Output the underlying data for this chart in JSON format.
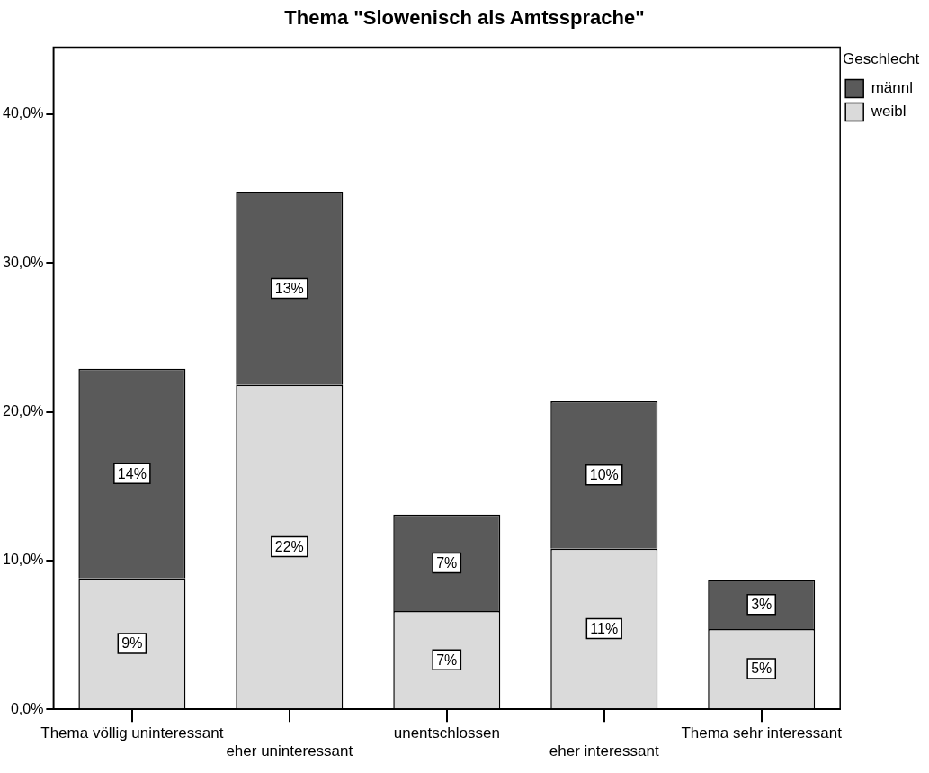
{
  "chart_data": {
    "type": "bar",
    "title": "Thema \"Slowenisch als Amtssprache\"",
    "categories": [
      "Thema völlig uninteressant",
      "eher uninteressant",
      "unentschlossen",
      "eher interessant",
      "Thema sehr interessant"
    ],
    "stacked": true,
    "series": [
      {
        "name": "weibl",
        "color": "#dadada",
        "values": [
          8.8,
          21.8,
          6.6,
          10.8,
          5.4
        ],
        "value_labels": [
          "9%",
          "22%",
          "7%",
          "11%",
          "5%"
        ]
      },
      {
        "name": "männl",
        "color": "#5a5a5a",
        "values": [
          14.1,
          13.0,
          6.5,
          9.9,
          3.3
        ],
        "value_labels": [
          "14%",
          "13%",
          "7%",
          "10%",
          "3%"
        ]
      }
    ],
    "ylim": [
      0,
      44.5
    ],
    "yticks": [
      {
        "value": 0,
        "label": "0,0%"
      },
      {
        "value": 10,
        "label": "10,0%"
      },
      {
        "value": 20,
        "label": "20,0%"
      },
      {
        "value": 30,
        "label": "30,0%"
      },
      {
        "value": 40,
        "label": "40,0%"
      }
    ],
    "grid": false,
    "legend": "right",
    "legend_title": "Geschlecht"
  }
}
